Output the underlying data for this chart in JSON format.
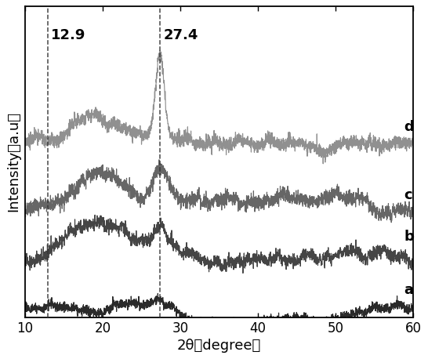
{
  "xlim": [
    10,
    60
  ],
  "xlabel": "2θ（degree）",
  "ylabel": "Intensity（a.u）",
  "vline1": 12.9,
  "vline2": 27.4,
  "label1": "12.9",
  "label2": "27.4",
  "curve_labels": [
    "a",
    "b",
    "c",
    "d"
  ],
  "curve_colors": [
    "#2a2a2a",
    "#454545",
    "#666666",
    "#909090"
  ],
  "offsets": [
    0.02,
    0.13,
    0.26,
    0.44
  ],
  "background_color": "#ffffff",
  "tick_fontsize": 12,
  "label_fontsize": 13,
  "annotation_fontsize": 13,
  "curve_label_fontsize": 13
}
